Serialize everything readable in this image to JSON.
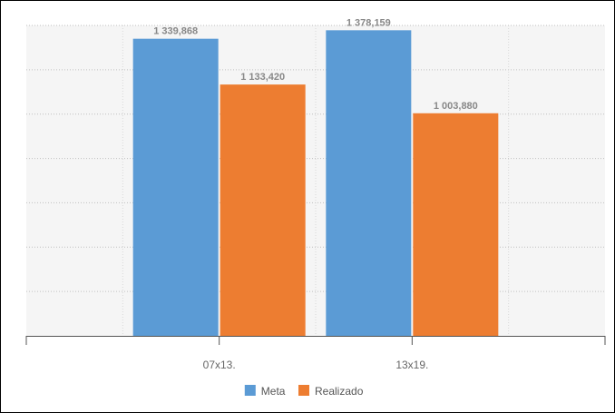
{
  "chart_data": {
    "type": "bar",
    "title": "",
    "xlabel": "",
    "ylabel": "",
    "categories": [
      "07x13.",
      "13x19."
    ],
    "series": [
      {
        "name": "Meta",
        "color": "#5B9BD5",
        "values": [
          1339.868,
          1378.159
        ],
        "labels": [
          "1 339,868",
          "1 378,159"
        ]
      },
      {
        "name": "Realizado",
        "color": "#ED7D31",
        "values": [
          1133.42,
          1003.88
        ],
        "labels": [
          "1 133,420",
          "1 003,880"
        ]
      }
    ],
    "ylim": [
      0,
      1400
    ],
    "grid": true,
    "legend_position": "bottom"
  }
}
